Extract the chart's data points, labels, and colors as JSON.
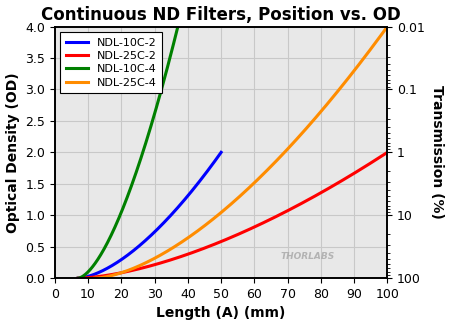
{
  "title": "Continuous ND Filters, Position vs. OD",
  "xlabel": "Length (A) (mm)",
  "ylabel_left": "Optical Density (OD)",
  "ylabel_right": "Transmission (%)",
  "xlim": [
    0,
    100
  ],
  "ylim_left": [
    0,
    4.0
  ],
  "ylim_right": [
    100,
    0.01
  ],
  "lines": [
    {
      "label": "NDL-10C-2",
      "color": "#0000FF",
      "x_start": 7.0,
      "x_end": 50.0,
      "od_start": 0.0,
      "od_end": 2.0,
      "lw": 2.2
    },
    {
      "label": "NDL-25C-2",
      "color": "#FF0000",
      "x_start": 7.0,
      "x_end": 100.0,
      "od_start": 0.0,
      "od_end": 2.0,
      "lw": 2.2
    },
    {
      "label": "NDL-10C-4",
      "color": "#008000",
      "x_start": 7.0,
      "x_end": 37.0,
      "od_start": 0.0,
      "od_end": 4.0,
      "lw": 2.2
    },
    {
      "label": "NDL-25C-4",
      "color": "#FF8C00",
      "x_start": 12.0,
      "x_end": 100.0,
      "od_start": 0.0,
      "od_end": 4.0,
      "lw": 2.2
    }
  ],
  "legend_loc": "upper left",
  "grid_color": "#C8C8C8",
  "plot_bg_color": "#E8E8E8",
  "watermark": "THORLABS",
  "bg_color": "#FFFFFF",
  "title_color": "#000000",
  "title_fontsize": 12,
  "label_fontsize": 10,
  "tick_fontsize": 9,
  "legend_fontsize": 8
}
